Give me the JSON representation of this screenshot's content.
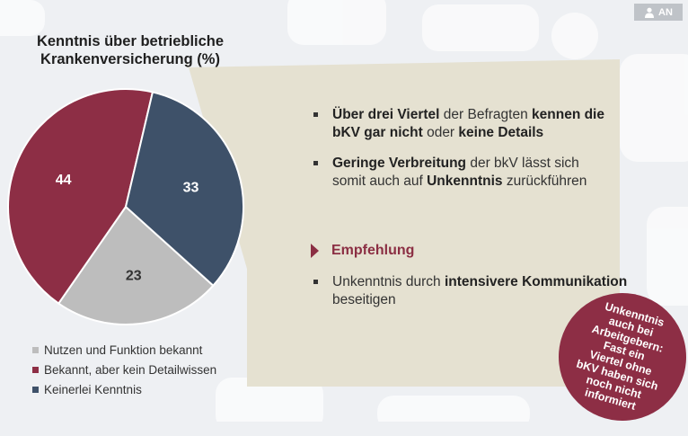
{
  "header": {
    "badge_label": "AN",
    "badge_icon": "person-icon"
  },
  "chart_data": {
    "type": "pie",
    "title": [
      "Kenntnis über betriebliche",
      "Krankenversicherung (%)"
    ],
    "slices": [
      {
        "label": "Nutzen und Funktion bekannt",
        "value": 23,
        "value_label": "23",
        "color": "#bdbdbd",
        "label_color": "#333333"
      },
      {
        "label": "Bekannt, aber kein Detailwissen",
        "value": 44,
        "value_label": "44",
        "color": "#8d2e45",
        "label_color": "#ffffff"
      },
      {
        "label": "Keinerlei Kenntnis",
        "value": 33,
        "value_label": "33",
        "color": "#3e5169",
        "label_color": "#ffffff"
      }
    ]
  },
  "findings": [
    {
      "parts": [
        {
          "text": "Über drei Viertel",
          "bold": true
        },
        {
          "text": " der Befragten ",
          "bold": false
        },
        {
          "text": "kennen die bKV gar nicht",
          "bold": true
        },
        {
          "text": " oder ",
          "bold": false
        },
        {
          "text": "keine Details",
          "bold": true
        }
      ]
    },
    {
      "parts": [
        {
          "text": "Geringe Verbreitung",
          "bold": true
        },
        {
          "text": " der bkV lässt sich somit auch auf ",
          "bold": false
        },
        {
          "text": "Unkenntnis",
          "bold": true
        },
        {
          "text": " zurückführen",
          "bold": false
        }
      ]
    }
  ],
  "recommendation": {
    "heading": "Empfehlung",
    "parts": [
      {
        "text": "Unkenntnis durch ",
        "bold": false
      },
      {
        "text": "intensivere Kommunikation",
        "bold": true
      },
      {
        "text": " beseitigen",
        "bold": false
      }
    ]
  },
  "callout": {
    "lines": [
      "Unkenntnis",
      "auch bei",
      "Arbeitgebern:",
      "Fast ein",
      "Viertel ohne",
      "bKV haben sich",
      "noch nicht",
      "informiert"
    ]
  },
  "colors": {
    "panel": "#e4e0d0",
    "accent": "#8d2e45"
  }
}
